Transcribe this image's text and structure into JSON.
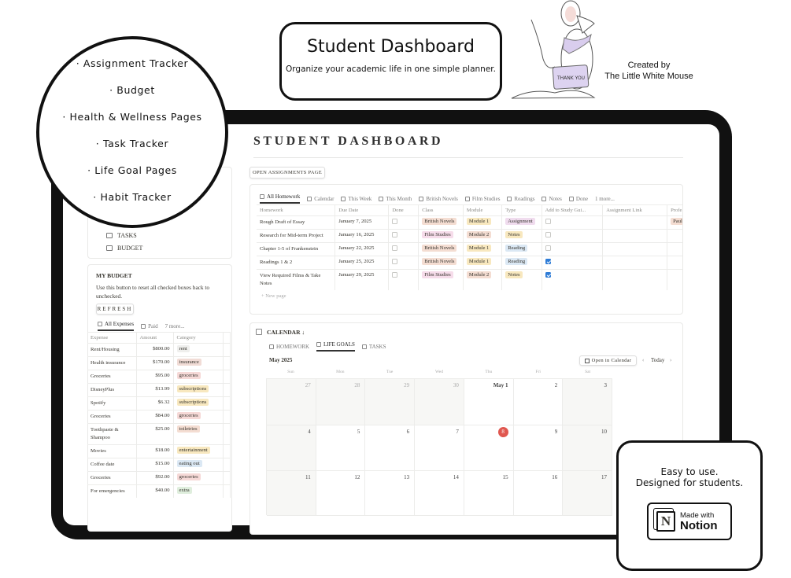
{
  "promo": {
    "title": "Student Dashboard",
    "subtitle": "Organize your academic life in one simple planner.",
    "credit_line1": "Created by",
    "credit_line2": "The Little White Mouse",
    "mouse_sign": "THANK YOU",
    "features": [
      "· Assignment Tracker",
      "· Budget",
      "· Health & Wellness Pages",
      "· Task Tracker",
      "· Life Goal Pages",
      "· Habit Tracker"
    ],
    "tagline1": "Easy to use.",
    "tagline2": "Designed for students.",
    "badge_small": "Made with",
    "badge_big": "Notion",
    "badge_logo": "N"
  },
  "dashboard": {
    "title": "STUDENT DASHBOARD"
  },
  "nav": [
    {
      "label": "TASKS",
      "icon": "list-icon"
    },
    {
      "label": "BUDGET",
      "icon": "money-icon"
    }
  ],
  "budget": {
    "title": "MY BUDGET",
    "desc": "Use this button to reset all checked boxes back to unchecked.",
    "refresh": "REFRESH",
    "tabs": [
      "All Expenses",
      "Paid",
      "7 more..."
    ],
    "columns": [
      "Expense",
      "Amount",
      "Category"
    ],
    "rows": [
      [
        "Rent/Housing",
        "$800.00",
        "rent"
      ],
      [
        "Health insurance",
        "$170.00",
        "insurance"
      ],
      [
        "Groceries",
        "$95.00",
        "groceries"
      ],
      [
        "DisneyPlus",
        "$13.99",
        "subscriptions"
      ],
      [
        "Spotify",
        "$6.32",
        "subscriptions"
      ],
      [
        "Groceries",
        "$84.00",
        "groceries"
      ],
      [
        "Toothpaste & Shampoo",
        "$25.00",
        "toiletries"
      ],
      [
        "Movies",
        "$18.00",
        "entertainment"
      ],
      [
        "Coffee date",
        "$15.00",
        "eating out"
      ],
      [
        "Groceries",
        "$92.00",
        "groceries"
      ],
      [
        "For emergencies",
        "$40.00",
        "extra"
      ]
    ],
    "tag_colors": {
      "rent": "#efefed",
      "insurance": "#f1dcd6",
      "groceries": "#f6d9d7",
      "subscriptions": "#f8e8bf",
      "toiletries": "#f4ddd2",
      "entertainment": "#f8e8bf",
      "eating out": "#dbe8f4",
      "extra": "#dfeedd"
    }
  },
  "homework": {
    "open_button": "OPEN ASSIGNMENTS PAGE",
    "tabs": [
      "All Homework",
      "Calendar",
      "This Week",
      "This Month",
      "British Novels",
      "Film Studies",
      "Readings",
      "Notes",
      "Done",
      "1 more..."
    ],
    "columns": [
      "Homework",
      "Due Date",
      "Done",
      "Class",
      "Module",
      "Type",
      "Add to Study Gui...",
      "Assignment Link",
      "Profe"
    ],
    "rows": [
      {
        "name": "Rough Draft of Essay",
        "due": "January 7, 2025",
        "done": false,
        "class": "British Novels",
        "module": "Module 1",
        "type": "Assignment",
        "study": false,
        "prof": "Paul Mi"
      },
      {
        "name": "Research for Mid-term Project",
        "due": "January 16, 2025",
        "done": false,
        "class": "Film Studies",
        "module": "Module 2",
        "type": "Notes",
        "study": false,
        "prof": ""
      },
      {
        "name": "Chapter 1-5 of Frankenstein",
        "due": "January 22, 2025",
        "done": false,
        "class": "British Novels",
        "module": "Module 1",
        "type": "Reading",
        "study": false,
        "prof": ""
      },
      {
        "name": "Readings 1 & 2",
        "due": "January 25, 2025",
        "done": false,
        "class": "British Novels",
        "module": "Module 1",
        "type": "Reading",
        "study": true,
        "prof": ""
      },
      {
        "name": "View Required Films & Take Notes",
        "due": "January 29, 2025",
        "done": false,
        "class": "Film Studies",
        "module": "Module 2",
        "type": "Notes",
        "study": true,
        "prof": ""
      }
    ],
    "new_page": "+ New page",
    "tag_colors": {
      "British Novels": "#f4ddd2",
      "Film Studies": "#f6dcea",
      "Module 1": "#f8e8bf",
      "Module 2": "#f4ddd2",
      "Assignment": "#f0dcee",
      "Notes": "#f8e8bf",
      "Reading": "#dbe8f4",
      "Paul Mi": "#f4ddd2"
    }
  },
  "calendar": {
    "title": "CALENDAR ↓",
    "tabs": [
      "HOMEWORK",
      "LIFE GOALS",
      "TASKS"
    ],
    "month": "May 2025",
    "open_button": "Open in Calendar",
    "today": "Today",
    "weekdays": [
      "Sun",
      "Mon",
      "Tue",
      "Wed",
      "Thu",
      "Fri",
      "Sat"
    ],
    "days": [
      "27",
      "28",
      "29",
      "30",
      "May 1",
      "2",
      "3",
      "4",
      "5",
      "6",
      "7",
      "8",
      "9",
      "10",
      "11",
      "12",
      "13",
      "14",
      "15",
      "16",
      "17"
    ],
    "today_day": "8"
  }
}
